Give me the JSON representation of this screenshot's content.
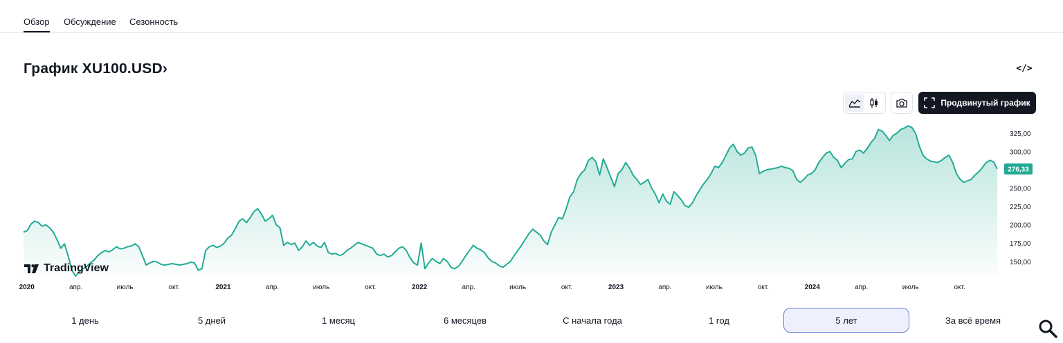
{
  "tabs": [
    {
      "label": "Обзор",
      "active": true
    },
    {
      "label": "Обсуждение",
      "active": false
    },
    {
      "label": "Сезонность",
      "active": false
    }
  ],
  "title": "График XU100.USD",
  "title_chevron": "›",
  "embed_label": "</>",
  "toolbar": {
    "advanced_chart_label": "Продвинутый график",
    "icons": [
      "area-chart-icon",
      "candles-icon",
      "camera-icon",
      "fullscreen-icon"
    ]
  },
  "logo_text": "TradingView",
  "colors": {
    "line": "#22ab94",
    "fill_top": "#bfe6dc",
    "price_badge": "#22ab94",
    "active_range_bg": "#eef1fd",
    "active_range_border": "#6a81d6"
  },
  "chart_data": {
    "type": "area",
    "symbol": "XU100.USD",
    "last_value_label": "276,33",
    "last_value": 276.33,
    "ylim": [
      130,
      342
    ],
    "y_ticks": [
      150,
      175,
      200,
      225,
      250,
      275,
      300,
      325
    ],
    "y_tick_labels": [
      "150,00",
      "175,00",
      "200,00",
      "225,00",
      "250,00",
      "275,00",
      "300,00",
      "325,00"
    ],
    "x_ticks": [
      {
        "label": "2020",
        "t": 0,
        "bold": true
      },
      {
        "label": "апр.",
        "t": 3
      },
      {
        "label": "июль",
        "t": 6
      },
      {
        "label": "окт.",
        "t": 9
      },
      {
        "label": "2021",
        "t": 12,
        "bold": true
      },
      {
        "label": "апр.",
        "t": 15
      },
      {
        "label": "июль",
        "t": 18
      },
      {
        "label": "окт.",
        "t": 21
      },
      {
        "label": "2022",
        "t": 24,
        "bold": true
      },
      {
        "label": "апр.",
        "t": 27
      },
      {
        "label": "июль",
        "t": 30
      },
      {
        "label": "окт.",
        "t": 33
      },
      {
        "label": "2023",
        "t": 36,
        "bold": true
      },
      {
        "label": "апр.",
        "t": 39
      },
      {
        "label": "июль",
        "t": 42
      },
      {
        "label": "окт.",
        "t": 45
      },
      {
        "label": "2024",
        "t": 48,
        "bold": true
      },
      {
        "label": "апр.",
        "t": 51
      },
      {
        "label": "июль",
        "t": 54
      },
      {
        "label": "окт.",
        "t": 57
      }
    ],
    "x_months_start": -0.2,
    "x_months_end": 59.3,
    "values": [
      190,
      192,
      201,
      205,
      203,
      198,
      200,
      196,
      190,
      180,
      168,
      174,
      158,
      138,
      130,
      136,
      140,
      143,
      148,
      152,
      158,
      162,
      165,
      163,
      166,
      170,
      167,
      168,
      170,
      171,
      174,
      170,
      158,
      145,
      148,
      150,
      149,
      146,
      145,
      146,
      147,
      146,
      145,
      146,
      147,
      149,
      148,
      138,
      140,
      165,
      170,
      172,
      169,
      171,
      175,
      182,
      186,
      195,
      205,
      208,
      203,
      210,
      218,
      222,
      215,
      205,
      208,
      213,
      200,
      196,
      172,
      176,
      173,
      175,
      165,
      170,
      178,
      172,
      176,
      171,
      169,
      176,
      162,
      160,
      161,
      158,
      160,
      165,
      168,
      172,
      176,
      174,
      172,
      170,
      168,
      160,
      158,
      160,
      156,
      158,
      163,
      168,
      170,
      165,
      155,
      148,
      145,
      175,
      140,
      148,
      154,
      150,
      147,
      154,
      150,
      142,
      140,
      143,
      150,
      158,
      165,
      172,
      168,
      166,
      162,
      155,
      150,
      148,
      144,
      142,
      146,
      150,
      158,
      165,
      172,
      180,
      188,
      194,
      190,
      186,
      178,
      173,
      190,
      200,
      210,
      208,
      222,
      238,
      245,
      262,
      270,
      275,
      288,
      292,
      286,
      268,
      290,
      278,
      265,
      252,
      270,
      275,
      285,
      278,
      268,
      262,
      255,
      258,
      262,
      250,
      242,
      230,
      242,
      232,
      228,
      245,
      240,
      234,
      226,
      224,
      230,
      240,
      248,
      256,
      262,
      270,
      280,
      278,
      285,
      295,
      305,
      310,
      300,
      295,
      298,
      305,
      306,
      295,
      270,
      273,
      275,
      276,
      277,
      278,
      280,
      278,
      277,
      274,
      262,
      258,
      262,
      268,
      270,
      275,
      285,
      292,
      298,
      300,
      292,
      288,
      278,
      284,
      289,
      290,
      300,
      302,
      298,
      304,
      312,
      318,
      330,
      328,
      322,
      315,
      322,
      325,
      330,
      332,
      335,
      333,
      325,
      308,
      295,
      290,
      287,
      286,
      285,
      288,
      292,
      295,
      285,
      270,
      262,
      258,
      260,
      262,
      268,
      272,
      278,
      285,
      288,
      286,
      276.33
    ]
  },
  "ranges": [
    {
      "label": "1 день",
      "active": false
    },
    {
      "label": "5 дней",
      "active": false
    },
    {
      "label": "1 месяц",
      "active": false
    },
    {
      "label": "6 месяцев",
      "active": false
    },
    {
      "label": "С начала года",
      "active": false
    },
    {
      "label": "1 год",
      "active": false
    },
    {
      "label": "5 лет",
      "active": true
    },
    {
      "label": "За всё время",
      "active": false
    }
  ]
}
